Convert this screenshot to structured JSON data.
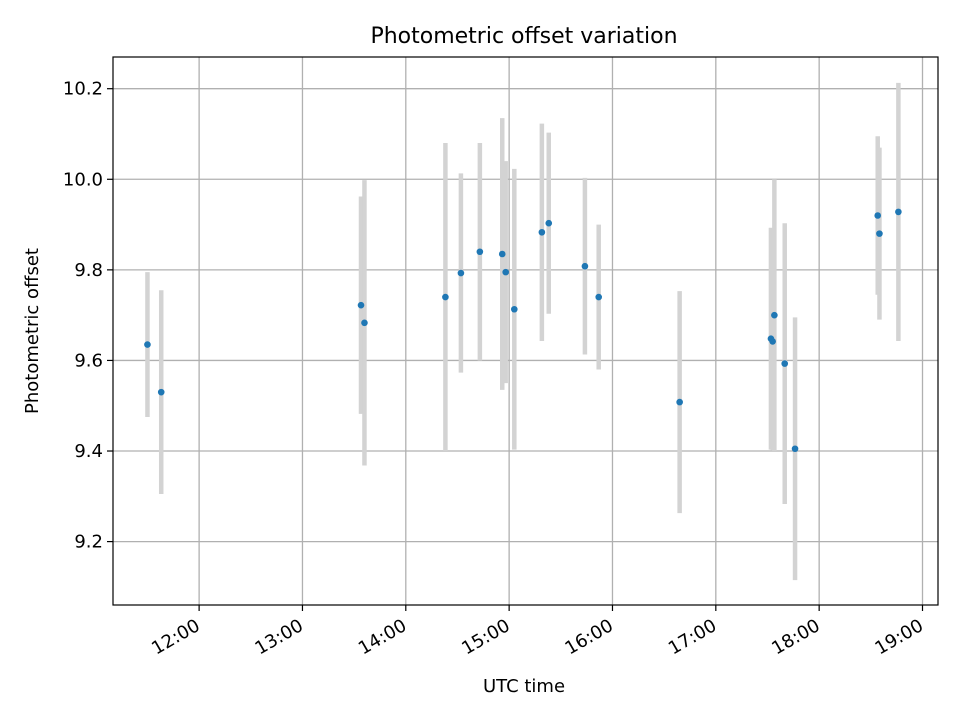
{
  "chart_data": {
    "type": "scatter",
    "title": "Photometric offset variation",
    "xlabel": "UTC time",
    "ylabel": "Photometric offset",
    "x_ticks": [
      "12:00",
      "13:00",
      "14:00",
      "15:00",
      "16:00",
      "17:00",
      "18:00",
      "19:00"
    ],
    "y_ticks": [
      "9.2",
      "9.4",
      "9.6",
      "9.8",
      "10.0",
      "10.2"
    ],
    "xlim": [
      "11:10",
      "19:09"
    ],
    "ylim": [
      9.06,
      10.27
    ],
    "grid": true,
    "colors": {
      "point": "#1f77b4",
      "error_bar": "#d3d3d3",
      "grid": "#b0b0b0"
    },
    "points": [
      {
        "x": "11:30",
        "y": 9.635,
        "err_low": 9.475,
        "err_high": 9.795
      },
      {
        "x": "11:38",
        "y": 9.53,
        "err_low": 9.305,
        "err_high": 9.755
      },
      {
        "x": "13:34",
        "y": 9.722,
        "err_low": 9.482,
        "err_high": 9.962
      },
      {
        "x": "13:36",
        "y": 9.683,
        "err_low": 9.368,
        "err_high": 9.998
      },
      {
        "x": "14:23",
        "y": 9.74,
        "err_low": 9.4,
        "err_high": 10.08
      },
      {
        "x": "14:32",
        "y": 9.793,
        "err_low": 9.573,
        "err_high": 10.013
      },
      {
        "x": "14:43",
        "y": 9.84,
        "err_low": 9.6,
        "err_high": 10.08
      },
      {
        "x": "14:56",
        "y": 9.835,
        "err_low": 9.535,
        "err_high": 10.135
      },
      {
        "x": "14:58",
        "y": 9.795,
        "err_low": 9.55,
        "err_high": 10.04
      },
      {
        "x": "15:03",
        "y": 9.713,
        "err_low": 9.403,
        "err_high": 10.023
      },
      {
        "x": "15:19",
        "y": 9.883,
        "err_low": 9.643,
        "err_high": 10.123
      },
      {
        "x": "15:23",
        "y": 9.903,
        "err_low": 9.703,
        "err_high": 10.103
      },
      {
        "x": "15:44",
        "y": 9.808,
        "err_low": 9.613,
        "err_high": 10.003
      },
      {
        "x": "15:52",
        "y": 9.74,
        "err_low": 9.58,
        "err_high": 9.9
      },
      {
        "x": "16:39",
        "y": 9.508,
        "err_low": 9.263,
        "err_high": 9.753
      },
      {
        "x": "17:32",
        "y": 9.648,
        "err_low": 9.403,
        "err_high": 9.893
      },
      {
        "x": "17:33",
        "y": 9.642,
        "err_low": 9.402,
        "err_high": 9.882
      },
      {
        "x": "17:34",
        "y": 9.7,
        "err_low": 9.4,
        "err_high": 10.0
      },
      {
        "x": "17:40",
        "y": 9.593,
        "err_low": 9.283,
        "err_high": 9.903
      },
      {
        "x": "17:46",
        "y": 9.405,
        "err_low": 9.115,
        "err_high": 9.695
      },
      {
        "x": "18:34",
        "y": 9.92,
        "err_low": 9.745,
        "err_high": 10.095
      },
      {
        "x": "18:35",
        "y": 9.88,
        "err_low": 9.69,
        "err_high": 10.07
      },
      {
        "x": "18:46",
        "y": 9.928,
        "err_low": 9.643,
        "err_high": 10.213
      }
    ]
  }
}
